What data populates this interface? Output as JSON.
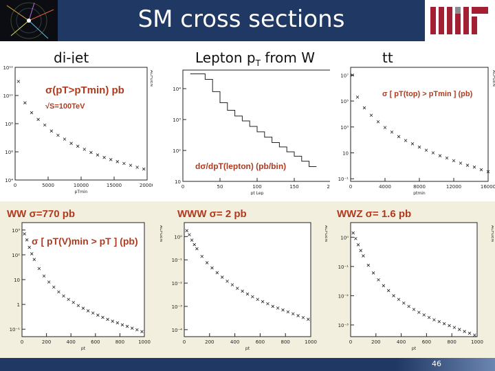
{
  "slide": {
    "title": "SM cross sections",
    "page_number": "46",
    "logo_text": "MIT"
  },
  "sections": {
    "dijet": "di-jet",
    "lepton_prefix": "Lepton p",
    "lepton_sub": "T",
    "lepton_suffix": " from W",
    "tt": "tt"
  },
  "colors": {
    "title_bar": "#1f3864",
    "annotation": "#b03a1e",
    "logo_red": "#a31f34",
    "logo_gray": "#8a8b8c",
    "bottom_bg": "#f3efdf"
  },
  "chart_data": [
    {
      "type": "scatter",
      "annotation_1": "σ(pT>pTmin) pb",
      "annotation_2": "√S=100TeV",
      "y_ticks": [
        "10¹²",
        "10¹⁰",
        "10⁸",
        "10⁶",
        "10⁴"
      ],
      "x_ticks": [
        "0",
        "5000",
        "10000",
        "15000",
        "20000"
      ],
      "xlabel": "pTmin",
      "side_label": "ALPGEN",
      "xlim": [
        0,
        20000
      ],
      "ylog": true,
      "points": [
        [
          500,
          100000000000.0
        ],
        [
          1500,
          3000000000.0
        ],
        [
          2500,
          600000000.0
        ],
        [
          3500,
          200000000.0
        ],
        [
          4500,
          80000000.0
        ],
        [
          5500,
          30000000.0
        ],
        [
          6500,
          15000000.0
        ],
        [
          7500,
          8000000.0
        ],
        [
          8500,
          4000000.0
        ],
        [
          9500,
          2500000.0
        ],
        [
          10500,
          1500000.0
        ],
        [
          11500,
          900000.0
        ],
        [
          12500,
          600000.0
        ],
        [
          13500,
          400000.0
        ],
        [
          14500,
          280000.0
        ],
        [
          15500,
          200000.0
        ],
        [
          16500,
          150000.0
        ],
        [
          17500,
          110000.0
        ],
        [
          18500,
          80000.0
        ],
        [
          19500,
          60000.0
        ]
      ]
    },
    {
      "type": "line",
      "annotation": "dσ/dpT(lepton)  (pb/bin)",
      "y_ticks": [
        "10⁴",
        "10³",
        "10²",
        "10"
      ],
      "x_ticks": [
        "0",
        "50",
        "100",
        "150",
        "200"
      ],
      "xlabel": "pt Lep",
      "xlim": [
        0,
        200
      ],
      "ylog": true,
      "steps": [
        [
          10,
          30000
        ],
        [
          20,
          30000
        ],
        [
          30,
          20000
        ],
        [
          40,
          8000
        ],
        [
          50,
          3500
        ],
        [
          60,
          2000
        ],
        [
          70,
          1300
        ],
        [
          80,
          900
        ],
        [
          90,
          600
        ],
        [
          100,
          400
        ],
        [
          110,
          270
        ],
        [
          120,
          180
        ],
        [
          130,
          130
        ],
        [
          140,
          90
        ],
        [
          150,
          65
        ],
        [
          160,
          45
        ],
        [
          170,
          30
        ]
      ]
    },
    {
      "type": "scatter",
      "annotation": "σ [ pT(top) > pTmin ] (pb)",
      "y_ticks": [
        "10⁷",
        "10⁵",
        "10³",
        "10",
        "10⁻¹"
      ],
      "x_ticks": [
        "0",
        "4000",
        "8000",
        "12000",
        "16000"
      ],
      "xlabel": "ptmin",
      "side_label": "ALPGEN",
      "xlim": [
        0,
        16000
      ],
      "ylog": true,
      "points": [
        [
          200,
          10000000.0
        ],
        [
          800,
          200000.0
        ],
        [
          1600,
          30000.0
        ],
        [
          2400,
          8000.0
        ],
        [
          3200,
          2500.0
        ],
        [
          4000,
          900
        ],
        [
          4800,
          400
        ],
        [
          5600,
          180
        ],
        [
          6400,
          90
        ],
        [
          7200,
          50
        ],
        [
          8000,
          28
        ],
        [
          8800,
          16
        ],
        [
          9600,
          10
        ],
        [
          10400,
          6
        ],
        [
          11200,
          4
        ],
        [
          12000,
          2.5
        ],
        [
          12800,
          1.6
        ],
        [
          13600,
          1.1
        ],
        [
          14400,
          0.8
        ],
        [
          15200,
          0.5
        ],
        [
          16000,
          0.35
        ]
      ]
    },
    {
      "type": "scatter",
      "title": "WW σ=770 pb",
      "annotation": "σ [ pT(V)min > pT ] (pb)",
      "y_ticks": [
        "10³",
        "10²",
        "10",
        "1",
        "10⁻¹"
      ],
      "x_ticks": [
        "0",
        "200",
        "400",
        "600",
        "800",
        "1000"
      ],
      "xlabel": "pt",
      "side_label": "ALPGEN",
      "xlim": [
        0,
        1000
      ],
      "ylog": true,
      "points": [
        [
          20,
          700
        ],
        [
          40,
          400
        ],
        [
          60,
          200
        ],
        [
          80,
          110
        ],
        [
          100,
          65
        ],
        [
          140,
          28
        ],
        [
          180,
          14
        ],
        [
          220,
          8
        ],
        [
          260,
          5
        ],
        [
          300,
          3.2
        ],
        [
          340,
          2.2
        ],
        [
          380,
          1.6
        ],
        [
          420,
          1.2
        ],
        [
          460,
          0.9
        ],
        [
          500,
          0.7
        ],
        [
          540,
          0.55
        ],
        [
          580,
          0.45
        ],
        [
          620,
          0.37
        ],
        [
          660,
          0.3
        ],
        [
          700,
          0.25
        ],
        [
          740,
          0.21
        ],
        [
          780,
          0.18
        ],
        [
          820,
          0.15
        ],
        [
          860,
          0.13
        ],
        [
          900,
          0.11
        ],
        [
          940,
          0.095
        ],
        [
          980,
          0.08
        ]
      ]
    },
    {
      "type": "scatter",
      "title": "WWW σ= 2 pb",
      "y_ticks": [
        "10⁰",
        "10⁻¹",
        "10⁻²",
        "10⁻³",
        "10⁻⁴"
      ],
      "x_ticks": [
        "0",
        "200",
        "400",
        "600",
        "800",
        "1000"
      ],
      "xlabel": "pt",
      "side_label": "ALPGEN",
      "xlim": [
        0,
        1000
      ],
      "ylog": true,
      "points": [
        [
          20,
          1.8
        ],
        [
          40,
          1.2
        ],
        [
          60,
          0.7
        ],
        [
          80,
          0.45
        ],
        [
          100,
          0.3
        ],
        [
          140,
          0.14
        ],
        [
          180,
          0.075
        ],
        [
          220,
          0.045
        ],
        [
          260,
          0.028
        ],
        [
          300,
          0.018
        ],
        [
          340,
          0.012
        ],
        [
          380,
          0.0085
        ],
        [
          420,
          0.006
        ],
        [
          460,
          0.0045
        ],
        [
          500,
          0.0034
        ],
        [
          540,
          0.0026
        ],
        [
          580,
          0.002
        ],
        [
          620,
          0.0016
        ],
        [
          660,
          0.0013
        ],
        [
          700,
          0.001
        ],
        [
          740,
          0.00085
        ],
        [
          780,
          0.0007
        ],
        [
          820,
          0.00058
        ],
        [
          860,
          0.00048
        ],
        [
          900,
          0.0004
        ],
        [
          940,
          0.00033
        ],
        [
          980,
          0.00028
        ]
      ]
    },
    {
      "type": "scatter",
      "title": "WWZ σ= 1.6 pb",
      "y_ticks": [
        "10⁰",
        "10⁻¹",
        "10⁻²",
        "10⁻³"
      ],
      "x_ticks": [
        "0",
        "200",
        "400",
        "600",
        "800",
        "1000"
      ],
      "xlabel": "pt",
      "side_label": "ALPGEN",
      "xlim": [
        0,
        1000
      ],
      "ylog": true,
      "points": [
        [
          20,
          1.4
        ],
        [
          40,
          0.9
        ],
        [
          60,
          0.55
        ],
        [
          80,
          0.35
        ],
        [
          100,
          0.23
        ],
        [
          140,
          0.11
        ],
        [
          180,
          0.06
        ],
        [
          220,
          0.035
        ],
        [
          260,
          0.022
        ],
        [
          300,
          0.015
        ],
        [
          340,
          0.01
        ],
        [
          380,
          0.0075
        ],
        [
          420,
          0.0056
        ],
        [
          460,
          0.0043
        ],
        [
          500,
          0.0034
        ],
        [
          540,
          0.0027
        ],
        [
          580,
          0.0022
        ],
        [
          620,
          0.0018
        ],
        [
          660,
          0.0015
        ],
        [
          700,
          0.0013
        ],
        [
          740,
          0.0011
        ],
        [
          780,
          0.00095
        ],
        [
          820,
          0.00082
        ],
        [
          860,
          0.0007
        ],
        [
          900,
          0.0006
        ],
        [
          940,
          0.00052
        ],
        [
          980,
          0.00045
        ]
      ]
    }
  ]
}
